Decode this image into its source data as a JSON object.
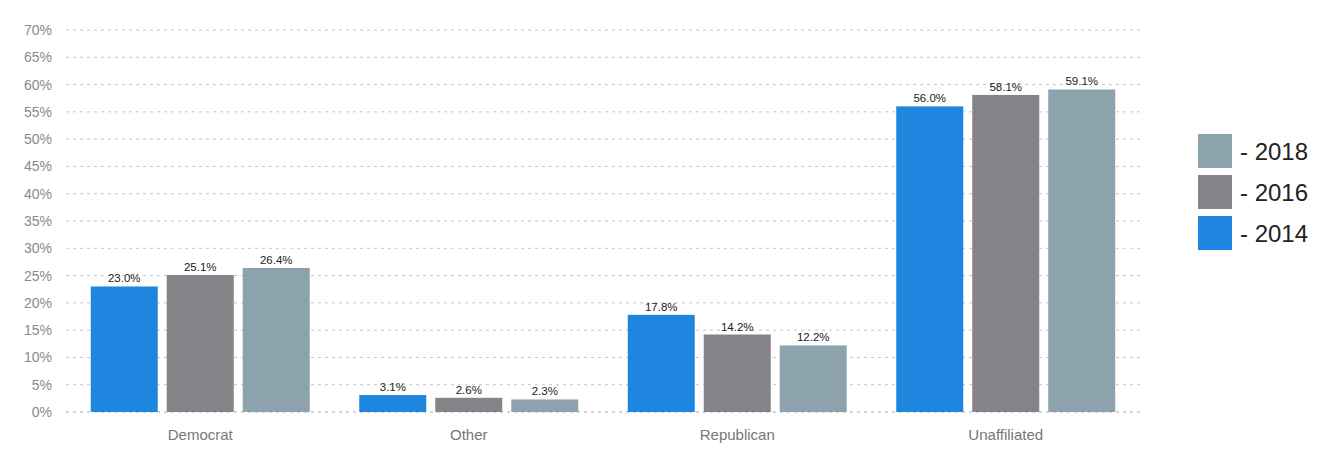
{
  "chart_data": {
    "type": "bar",
    "categories": [
      "Democrat",
      "Other",
      "Republican",
      "Unaffiliated"
    ],
    "series": [
      {
        "name": "- 2014",
        "color": "#1e86df",
        "values": [
          23.0,
          3.1,
          17.8,
          56.0
        ],
        "value_labels": [
          "23.0%",
          "3.1%",
          "17.8%",
          "56.0%"
        ]
      },
      {
        "name": "- 2016",
        "color": "#858288",
        "values": [
          25.1,
          2.6,
          14.2,
          58.1
        ],
        "value_labels": [
          "25.1%",
          "2.6%",
          "14.2%",
          "58.1%"
        ]
      },
      {
        "name": "- 2018",
        "color": "#8ca3ad",
        "values": [
          26.4,
          2.3,
          12.2,
          59.1
        ],
        "value_labels": [
          "26.4%",
          "2.3%",
          "12.2%",
          "59.1%"
        ]
      }
    ],
    "ylim": [
      0,
      70
    ],
    "yticks": [
      {
        "value": 0,
        "label": "0%"
      },
      {
        "value": 5,
        "label": "5%"
      },
      {
        "value": 10,
        "label": "10%"
      },
      {
        "value": 15,
        "label": "15%"
      },
      {
        "value": 20,
        "label": "20%"
      },
      {
        "value": 25,
        "label": "25%"
      },
      {
        "value": 30,
        "label": "30%"
      },
      {
        "value": 35,
        "label": "35%"
      },
      {
        "value": 40,
        "label": "40%"
      },
      {
        "value": 45,
        "label": "45%"
      },
      {
        "value": 50,
        "label": "50%"
      },
      {
        "value": 55,
        "label": "55%"
      },
      {
        "value": 60,
        "label": "60%"
      },
      {
        "value": 65,
        "label": "65%"
      },
      {
        "value": 70,
        "label": "70%"
      }
    ],
    "grid": true,
    "legend": "right",
    "data_labels": true
  }
}
